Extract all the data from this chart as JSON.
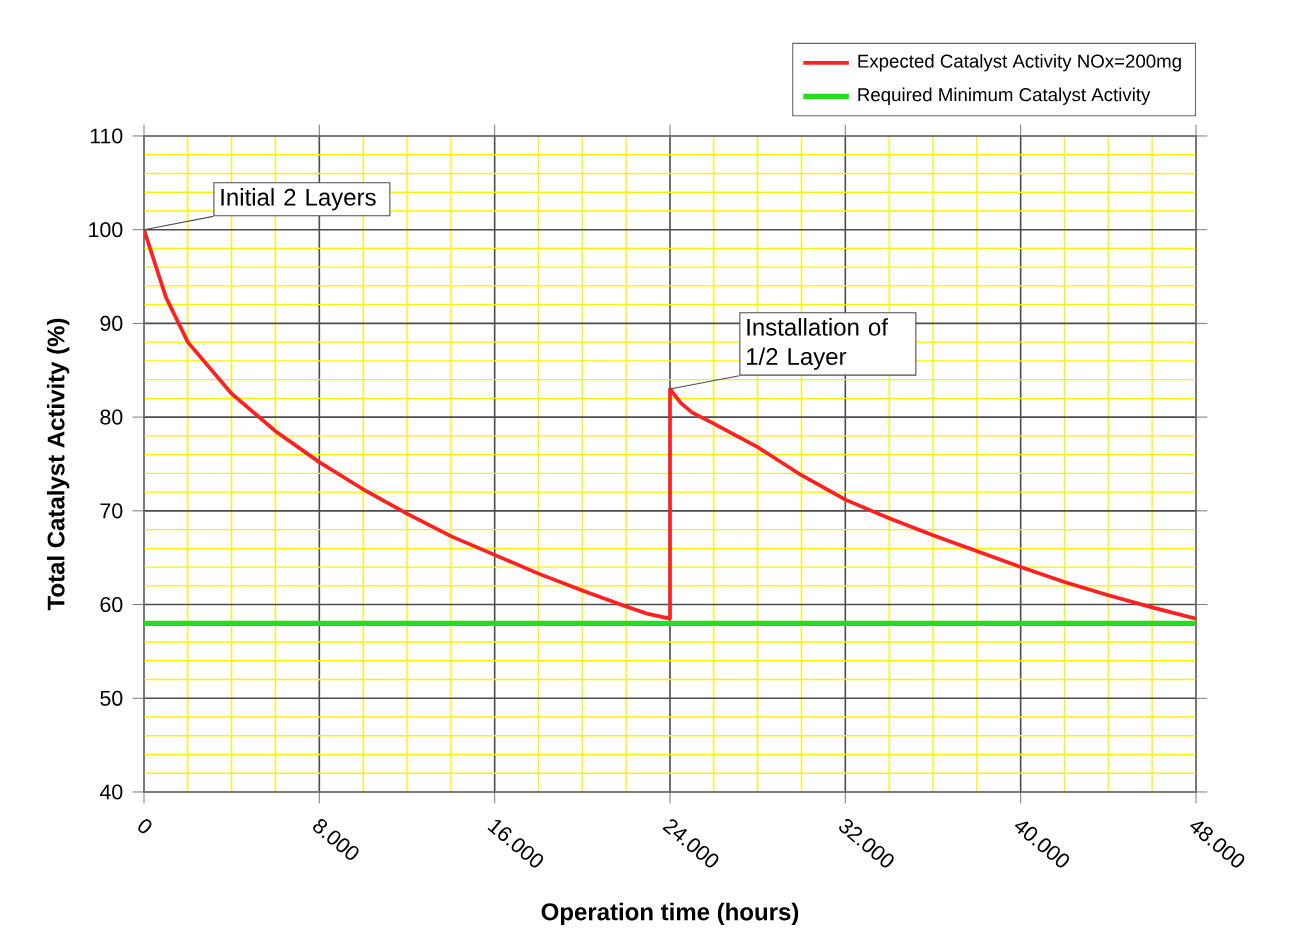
{
  "chart_data": {
    "type": "line",
    "xlabel": "Operation time (hours)",
    "ylabel": "Total Catalyst Activity (%)",
    "xlim": [
      0,
      48000
    ],
    "ylim": [
      40,
      110
    ],
    "xticks": [
      0,
      {
        "value": 2000,
        "label": null
      },
      {
        "value": 4000,
        "label": null
      },
      {
        "value": 6000,
        "label": null
      },
      {
        "value": 8000,
        "label": "8.000"
      },
      {
        "value": 10000,
        "label": null
      },
      {
        "value": 12000,
        "label": null
      },
      {
        "value": 14000,
        "label": null
      },
      {
        "value": 16000,
        "label": "16.000"
      },
      {
        "value": 18000,
        "label": null
      },
      {
        "value": 20000,
        "label": null
      },
      {
        "value": 22000,
        "label": null
      },
      {
        "value": 24000,
        "label": "24.000"
      },
      {
        "value": 26000,
        "label": null
      },
      {
        "value": 28000,
        "label": null
      },
      {
        "value": 30000,
        "label": null
      },
      {
        "value": 32000,
        "label": "32.000"
      },
      {
        "value": 34000,
        "label": null
      },
      {
        "value": 36000,
        "label": null
      },
      {
        "value": 38000,
        "label": null
      },
      {
        "value": 40000,
        "label": "40.000"
      },
      {
        "value": 42000,
        "label": null
      },
      {
        "value": 44000,
        "label": null
      },
      {
        "value": 46000,
        "label": null
      },
      {
        "value": 48000,
        "label": "48.000"
      }
    ],
    "yticks": [
      40,
      {
        "value": 42,
        "label": null
      },
      {
        "value": 44,
        "label": null
      },
      {
        "value": 46,
        "label": null
      },
      {
        "value": 48,
        "label": null
      },
      50,
      {
        "value": 52,
        "label": null
      },
      {
        "value": 54,
        "label": null
      },
      {
        "value": 56,
        "label": null
      },
      {
        "value": 58,
        "label": null
      },
      60,
      {
        "value": 62,
        "label": null
      },
      {
        "value": 64,
        "label": null
      },
      {
        "value": 66,
        "label": null
      },
      {
        "value": 68,
        "label": null
      },
      70,
      {
        "value": 72,
        "label": null
      },
      {
        "value": 74,
        "label": null
      },
      {
        "value": 76,
        "label": null
      },
      {
        "value": 78,
        "label": null
      },
      80,
      {
        "value": 82,
        "label": null
      },
      {
        "value": 84,
        "label": null
      },
      {
        "value": 86,
        "label": null
      },
      {
        "value": 88,
        "label": null
      },
      90,
      {
        "value": 92,
        "label": null
      },
      {
        "value": 94,
        "label": null
      },
      {
        "value": 96,
        "label": null
      },
      {
        "value": 98,
        "label": null
      },
      100,
      {
        "value": 102,
        "label": null
      },
      {
        "value": 104,
        "label": null
      },
      {
        "value": 106,
        "label": null
      },
      {
        "value": 108,
        "label": null
      },
      110
    ],
    "grid": true,
    "legend": "top right",
    "marker": "none",
    "line_style": "solid",
    "series": [
      {
        "name": "Expected Catalyst Activity NOx=200mg",
        "color": "#ff2020",
        "x": [
          0,
          1000,
          2000,
          4000,
          6000,
          8000,
          10000,
          12000,
          14000,
          16000,
          18000,
          20000,
          22000,
          23000,
          24000,
          24000,
          24500,
          25000,
          26000,
          28000,
          30000,
          32000,
          34000,
          36000,
          38000,
          40000,
          42000,
          44000,
          46000,
          48000
        ],
        "values": [
          100,
          92.8,
          88,
          82.5,
          78.5,
          75.2,
          72.3,
          69.7,
          67.3,
          65.3,
          63.3,
          61.5,
          59.8,
          59,
          58.5,
          83,
          81.5,
          80.5,
          79.3,
          76.8,
          73.8,
          71.2,
          69.2,
          67.4,
          65.7,
          64,
          62.4,
          61,
          59.7,
          58.5
        ]
      },
      {
        "name": "Required Minimum Catalyst Activity",
        "color": "#22dd22",
        "x": [
          0,
          48000
        ],
        "values": [
          58,
          58
        ]
      }
    ],
    "annotations": [
      {
        "text": "Initial 2 Layers",
        "x": 0,
        "y": 100
      },
      {
        "text": "Installation of 1/2 Layer",
        "x": 24000,
        "y": 83
      }
    ]
  }
}
